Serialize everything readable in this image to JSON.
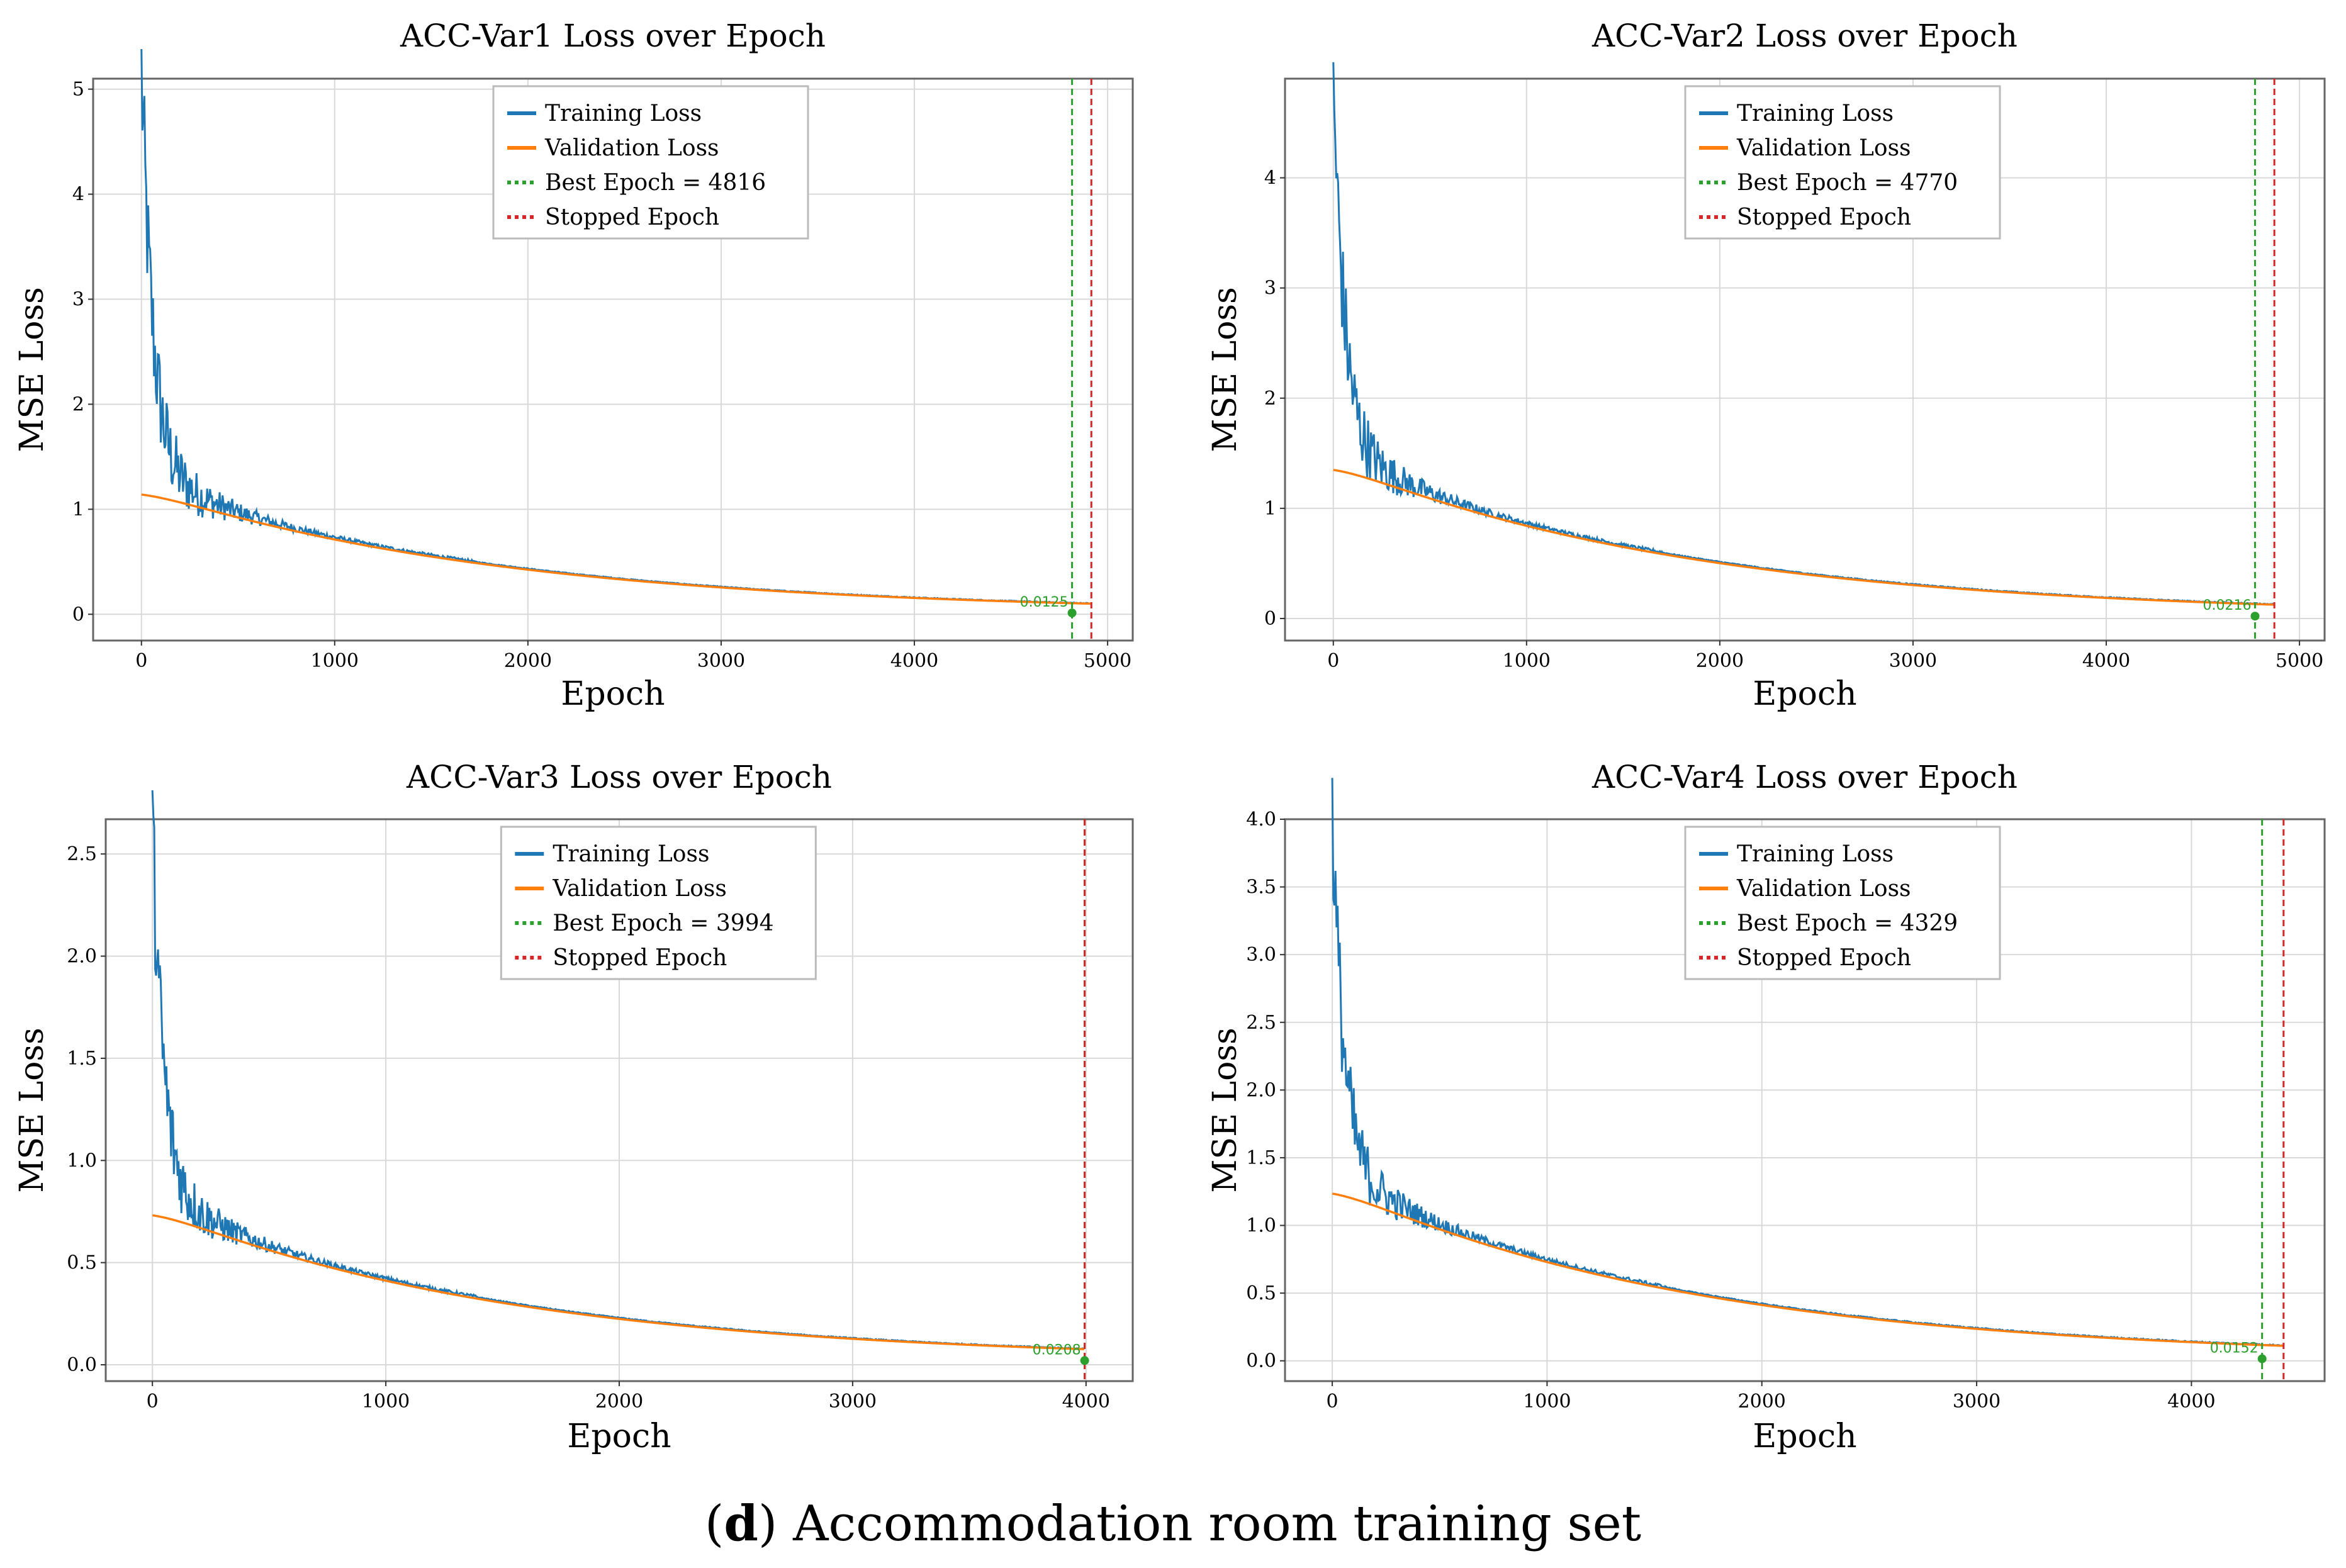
{
  "caption": {
    "open": "(",
    "letter": "d",
    "text": ") Accommodation room training set"
  },
  "legend_labels": [
    "Training Loss",
    "Validation Loss",
    "Best Epoch = {best}",
    "Stopped Epoch"
  ],
  "colors": {
    "train": "#1f77b4",
    "val": "#ff7f0e",
    "best": "#2ca02c",
    "stopped": "#d62728",
    "grid": "#d9d9d9",
    "frame": "#666666"
  },
  "chart_data": [
    {
      "type": "line",
      "title": "ACC-Var1 Loss over Epoch",
      "xlabel": "Epoch",
      "ylabel": "MSE Loss",
      "xlim": [
        -250,
        5130
      ],
      "ylim": [
        -0.25,
        5.1
      ],
      "xticks": [
        0,
        1000,
        2000,
        3000,
        4000,
        5000
      ],
      "yticks": [
        0,
        1,
        2,
        3,
        4,
        5
      ],
      "ytick_labels": [
        "0",
        "1",
        "2",
        "3",
        "4",
        "5"
      ],
      "best_epoch": 4816,
      "stopped_epoch": 4916,
      "best_val_loss": 0.0125,
      "best_val_label": "0.0125",
      "train_peak": 4.95,
      "val_start": 1.2,
      "legend": "top-center",
      "grid": true
    },
    {
      "type": "line",
      "title": "ACC-Var2 Loss over Epoch",
      "xlabel": "Epoch",
      "ylabel": "MSE Loss",
      "xlim": [
        -250,
        5130
      ],
      "ylim": [
        -0.2,
        4.9
      ],
      "xticks": [
        0,
        1000,
        2000,
        3000,
        4000,
        5000
      ],
      "yticks": [
        0,
        1,
        2,
        3,
        4
      ],
      "ytick_labels": [
        "0",
        "1",
        "2",
        "3",
        "4"
      ],
      "best_epoch": 4770,
      "stopped_epoch": 4870,
      "best_val_loss": 0.0216,
      "best_val_label": "0.0216",
      "train_peak": 4.65,
      "val_start": 1.42,
      "legend": "top-center",
      "grid": true
    },
    {
      "type": "line",
      "title": "ACC-Var3 Loss over Epoch",
      "xlabel": "Epoch",
      "ylabel": "MSE Loss",
      "xlim": [
        -200,
        4200
      ],
      "ylim": [
        -0.08,
        2.67
      ],
      "xticks": [
        0,
        1000,
        2000,
        3000,
        4000
      ],
      "yticks": [
        0,
        0.5,
        1.0,
        1.5,
        2.0,
        2.5
      ],
      "ytick_labels": [
        "0.0",
        "0.5",
        "1.0",
        "1.5",
        "2.0",
        "2.5"
      ],
      "best_epoch": 3994,
      "stopped_epoch": 3994,
      "best_val_loss": 0.0208,
      "best_val_label": "0.0208",
      "train_peak": 2.52,
      "val_start": 0.77,
      "legend": "top-center",
      "grid": true
    },
    {
      "type": "line",
      "title": "ACC-Var4 Loss over Epoch",
      "xlabel": "Epoch",
      "ylabel": "MSE Loss",
      "xlim": [
        -220,
        4620
      ],
      "ylim": [
        -0.15,
        4.0
      ],
      "xticks": [
        0,
        1000,
        2000,
        3000,
        4000
      ],
      "yticks": [
        0,
        0.5,
        1.0,
        1.5,
        2.0,
        2.5,
        3.0,
        3.5,
        4.0
      ],
      "ytick_labels": [
        "0.0",
        "0.5",
        "1.0",
        "1.5",
        "2.0",
        "2.5",
        "3.0",
        "3.5",
        "4.0"
      ],
      "best_epoch": 4329,
      "stopped_epoch": 4429,
      "best_val_loss": 0.0152,
      "best_val_label": "0.0152",
      "train_peak": 3.85,
      "val_start": 1.3,
      "legend": "top-center",
      "grid": true
    }
  ]
}
